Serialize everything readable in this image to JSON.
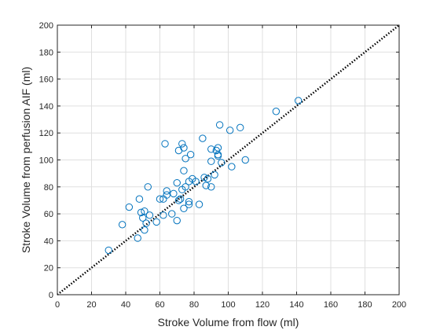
{
  "chart_data": {
    "type": "scatter",
    "title": "",
    "xlabel": "Stroke Volume from flow (ml)",
    "ylabel": "Stroke Volume from perfusion AIF (ml)",
    "xlim": [
      0,
      200
    ],
    "ylim": [
      0,
      200
    ],
    "xticks": [
      "0",
      "20",
      "40",
      "60",
      "80",
      "100",
      "120",
      "140",
      "160",
      "180",
      "200"
    ],
    "yticks": [
      "0",
      "20",
      "40",
      "60",
      "80",
      "100",
      "120",
      "140",
      "160",
      "180",
      "200"
    ],
    "grid": true,
    "marker_color": "#0072BD",
    "identity_line": {
      "style": "dotted",
      "color": "#000000",
      "from": [
        0,
        0
      ],
      "to": [
        200,
        200
      ]
    },
    "series": [
      {
        "points": [
          [
            30,
            33
          ],
          [
            38,
            52
          ],
          [
            42,
            65
          ],
          [
            47,
            42
          ],
          [
            48,
            71
          ],
          [
            49,
            61
          ],
          [
            50,
            57
          ],
          [
            51,
            48
          ],
          [
            51,
            62
          ],
          [
            52,
            53
          ],
          [
            53,
            80
          ],
          [
            54,
            59
          ],
          [
            58,
            54
          ],
          [
            60,
            71
          ],
          [
            62,
            71
          ],
          [
            62,
            59
          ],
          [
            63,
            112
          ],
          [
            64,
            77
          ],
          [
            64,
            74
          ],
          [
            67,
            60
          ],
          [
            68,
            75
          ],
          [
            70,
            83
          ],
          [
            70,
            55
          ],
          [
            71,
            70
          ],
          [
            71,
            107
          ],
          [
            72,
            71
          ],
          [
            73,
            78
          ],
          [
            73,
            112
          ],
          [
            74,
            92
          ],
          [
            74,
            109
          ],
          [
            74,
            64
          ],
          [
            75,
            101
          ],
          [
            75,
            80
          ],
          [
            77,
            69
          ],
          [
            77,
            67
          ],
          [
            77,
            84
          ],
          [
            78,
            104
          ],
          [
            79,
            86
          ],
          [
            81,
            84
          ],
          [
            83,
            67
          ],
          [
            85,
            116
          ],
          [
            86,
            87
          ],
          [
            87,
            81
          ],
          [
            88,
            86
          ],
          [
            90,
            80
          ],
          [
            90,
            99
          ],
          [
            90,
            108
          ],
          [
            92,
            89
          ],
          [
            93,
            107
          ],
          [
            94,
            109
          ],
          [
            94,
            104
          ],
          [
            94,
            103
          ],
          [
            95,
            126
          ],
          [
            96,
            98
          ],
          [
            101,
            122
          ],
          [
            102,
            95
          ],
          [
            107,
            124
          ],
          [
            110,
            100
          ],
          [
            128,
            136
          ],
          [
            141,
            144
          ]
        ]
      }
    ]
  }
}
